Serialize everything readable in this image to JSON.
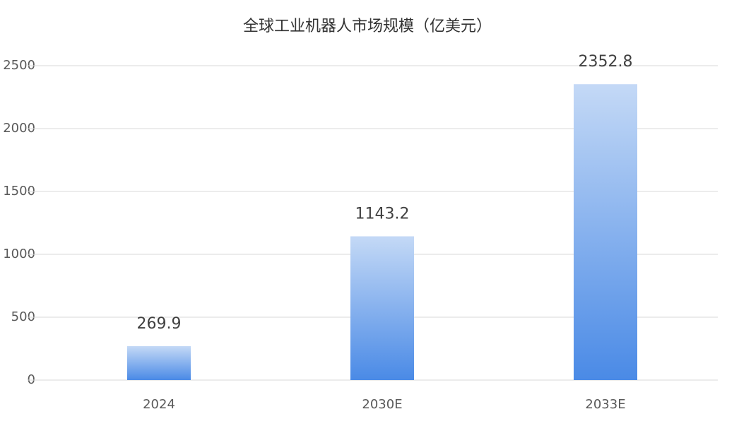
{
  "chart_data": {
    "type": "bar",
    "title": "全球工业机器人市场规模（亿美元）",
    "categories": [
      "2024",
      "2030E",
      "2033E"
    ],
    "values": [
      269.9,
      1143.2,
      2352.8
    ],
    "color": "#4a8ae6",
    "color_top": "#c4d9f6",
    "ylim": [
      0,
      2500
    ],
    "yticks": [
      0,
      500,
      1000,
      1500,
      2000,
      2500
    ],
    "grid": true
  }
}
